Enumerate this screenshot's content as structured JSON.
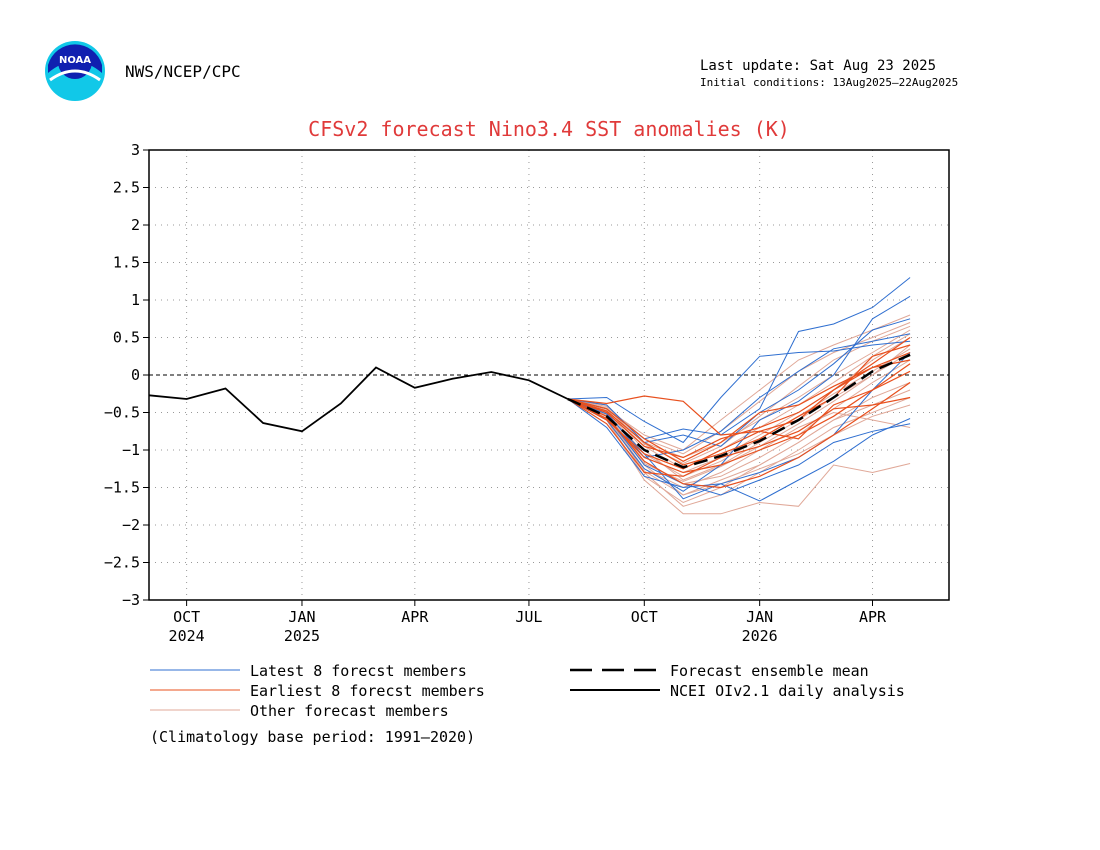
{
  "header": {
    "agency": "NWS/NCEP/CPC",
    "last_update": "Last update: Sat Aug 23 2025",
    "initial_conditions": "Initial conditions: 13Aug2025–22Aug2025",
    "logo_text": "NOAA"
  },
  "colors": {
    "latest": "#2f6fd0",
    "earliest": "#e8501e",
    "other": "#e0a898",
    "mean": "#000000",
    "analysis": "#000000",
    "title": "#e03a3a"
  },
  "chart_data": {
    "type": "line",
    "title": "CFSv2 forecast Nino3.4 SST anomalies (K)",
    "ylabel": "",
    "xlabel": "",
    "ylim": [
      -3,
      3
    ],
    "yticks": [
      {
        "v": 3,
        "label": "3"
      },
      {
        "v": 2.5,
        "label": "2.5"
      },
      {
        "v": 2,
        "label": "2"
      },
      {
        "v": 1.5,
        "label": "1.5"
      },
      {
        "v": 1,
        "label": "1"
      },
      {
        "v": 0.5,
        "label": "0.5"
      },
      {
        "v": 0,
        "label": "0"
      },
      {
        "v": -0.5,
        "label": "−0.5"
      },
      {
        "v": -1,
        "label": "−1"
      },
      {
        "v": -1.5,
        "label": "−1.5"
      },
      {
        "v": -2,
        "label": "−2"
      },
      {
        "v": -2.5,
        "label": "−2.5"
      },
      {
        "v": -3,
        "label": "−3"
      }
    ],
    "xlim": [
      "2024-09-01",
      "2026-06-01"
    ],
    "xticks": [
      {
        "date": "2024-10-01",
        "label": "OCT",
        "year": "2024"
      },
      {
        "date": "2025-01-01",
        "label": "JAN",
        "year": "2025"
      },
      {
        "date": "2025-04-01",
        "label": "APR",
        "year": ""
      },
      {
        "date": "2025-07-01",
        "label": "JUL",
        "year": ""
      },
      {
        "date": "2025-10-01",
        "label": "OCT",
        "year": ""
      },
      {
        "date": "2026-01-01",
        "label": "JAN",
        "year": "2026"
      },
      {
        "date": "2026-04-01",
        "label": "APR",
        "year": ""
      }
    ],
    "grid": true,
    "zero_line": true,
    "analysis": {
      "name": "NCEI OIv2.1 daily analysis",
      "points": [
        [
          "2024-09-01",
          -0.27
        ],
        [
          "2024-10-01",
          -0.32
        ],
        [
          "2024-11-01",
          -0.18
        ],
        [
          "2024-12-01",
          -0.64
        ],
        [
          "2025-01-01",
          -0.75
        ],
        [
          "2025-02-01",
          -0.38
        ],
        [
          "2025-03-01",
          0.1
        ],
        [
          "2025-04-01",
          -0.17
        ],
        [
          "2025-05-01",
          -0.05
        ],
        [
          "2025-06-01",
          0.04
        ],
        [
          "2025-07-01",
          -0.07
        ],
        [
          "2025-08-01",
          -0.32
        ]
      ]
    },
    "forecast_months": [
      "2025-08-01",
      "2025-09-01",
      "2025-10-01",
      "2025-11-01",
      "2025-12-01",
      "2026-01-01",
      "2026-02-01",
      "2026-03-01",
      "2026-04-01",
      "2026-05-01"
    ],
    "ensemble_mean": {
      "name": "Forecast ensemble mean",
      "values": [
        -0.32,
        -0.55,
        -1.0,
        -1.23,
        -1.08,
        -0.88,
        -0.6,
        -0.3,
        0.05,
        0.27
      ]
    },
    "latest_members": {
      "name": "Latest 8 forecst members",
      "members": [
        [
          -0.32,
          -0.3,
          -0.62,
          -0.9,
          -0.3,
          0.25,
          0.3,
          0.32,
          0.4,
          0.45
        ],
        [
          -0.32,
          -0.52,
          -1.05,
          -1.65,
          -1.45,
          -1.68,
          -1.4,
          -1.15,
          -0.8,
          -0.58
        ],
        [
          -0.32,
          -0.45,
          -0.85,
          -0.72,
          -0.8,
          -0.45,
          0.58,
          0.68,
          0.9,
          1.3
        ],
        [
          -0.32,
          -0.6,
          -1.25,
          -1.55,
          -1.2,
          -0.6,
          -0.35,
          0.0,
          0.75,
          1.05
        ],
        [
          -0.32,
          -0.7,
          -1.35,
          -1.5,
          -1.45,
          -1.3,
          -1.1,
          -0.8,
          -0.2,
          0.3
        ],
        [
          -0.32,
          -0.4,
          -0.9,
          -0.8,
          -0.95,
          -0.5,
          -0.2,
          0.15,
          0.6,
          0.75
        ],
        [
          -0.32,
          -0.55,
          -1.2,
          -1.45,
          -1.6,
          -1.4,
          -1.2,
          -0.9,
          -0.75,
          -0.65
        ],
        [
          -0.32,
          -0.5,
          -1.1,
          -1.0,
          -0.75,
          -0.3,
          0.05,
          0.35,
          0.45,
          0.55
        ]
      ]
    },
    "earliest_members": {
      "name": "Earliest 8 forecst members",
      "members": [
        [
          -0.32,
          -0.38,
          -0.28,
          -0.35,
          -0.8,
          -0.75,
          -0.85,
          -0.4,
          -0.2,
          0.05
        ],
        [
          -0.32,
          -0.6,
          -1.05,
          -1.25,
          -1.0,
          -0.75,
          -0.6,
          -0.2,
          0.1,
          0.3
        ],
        [
          -0.32,
          -0.5,
          -0.95,
          -1.1,
          -0.85,
          -0.7,
          -0.5,
          -0.2,
          0.15,
          0.5
        ],
        [
          -0.32,
          -0.55,
          -1.15,
          -1.45,
          -1.5,
          -1.35,
          -1.1,
          -0.8,
          -0.45,
          -0.1
        ],
        [
          -0.32,
          -0.45,
          -0.85,
          -1.15,
          -0.9,
          -0.5,
          -0.4,
          -0.15,
          0.1,
          0.2
        ],
        [
          -0.32,
          -0.65,
          -1.3,
          -1.35,
          -1.1,
          -0.95,
          -0.75,
          -0.45,
          -0.4,
          -0.3
        ],
        [
          -0.32,
          -0.48,
          -0.9,
          -1.2,
          -1.05,
          -0.85,
          -0.55,
          -0.3,
          0.25,
          0.4
        ],
        [
          -0.32,
          -0.58,
          -1.1,
          -1.3,
          -1.2,
          -1.0,
          -0.8,
          -0.55,
          -0.2,
          0.15
        ]
      ]
    },
    "other_members": {
      "name": "Other forecast members",
      "members": [
        [
          -0.32,
          -0.6,
          -1.4,
          -1.85,
          -1.85,
          -1.7,
          -1.75,
          -1.2,
          -1.3,
          -1.18
        ],
        [
          -0.32,
          -0.55,
          -1.3,
          -1.75,
          -1.6,
          -1.3,
          -1.0,
          -0.7,
          -0.5,
          -0.3
        ],
        [
          -0.32,
          -0.5,
          -1.2,
          -1.6,
          -1.4,
          -1.2,
          -0.9,
          -0.6,
          -0.3,
          -0.1
        ],
        [
          -0.32,
          -0.45,
          -1.0,
          -1.4,
          -1.2,
          -0.9,
          -0.6,
          -0.3,
          0.0,
          0.3
        ],
        [
          -0.32,
          -0.5,
          -1.1,
          -1.3,
          -1.1,
          -0.8,
          -0.5,
          -0.2,
          0.2,
          0.5
        ],
        [
          -0.32,
          -0.4,
          -0.9,
          -1.1,
          -0.9,
          -0.6,
          -0.3,
          0.0,
          0.3,
          0.6
        ],
        [
          -0.32,
          -0.45,
          -0.8,
          -1.0,
          -0.6,
          -0.2,
          0.2,
          0.4,
          0.6,
          0.8
        ],
        [
          -0.32,
          -0.55,
          -1.25,
          -1.5,
          -1.3,
          -1.0,
          -0.7,
          -0.5,
          -0.6,
          -0.7
        ],
        [
          -0.32,
          -0.6,
          -1.35,
          -1.7,
          -1.5,
          -1.2,
          -0.9,
          -0.6,
          -0.4,
          -0.2
        ],
        [
          -0.32,
          -0.48,
          -1.05,
          -1.35,
          -1.15,
          -0.85,
          -0.55,
          -0.25,
          0.05,
          0.35
        ],
        [
          -0.32,
          -0.42,
          -0.85,
          -1.05,
          -0.75,
          -0.35,
          0.05,
          0.3,
          0.5,
          0.7
        ],
        [
          -0.32,
          -0.52,
          -1.15,
          -1.45,
          -1.35,
          -1.1,
          -0.8,
          -0.45,
          -0.1,
          0.2
        ],
        [
          -0.32,
          -0.58,
          -1.28,
          -1.6,
          -1.45,
          -1.25,
          -1.05,
          -0.8,
          -0.55,
          -0.4
        ],
        [
          -0.32,
          -0.47,
          -0.95,
          -1.25,
          -1.0,
          -0.7,
          -0.4,
          -0.1,
          0.25,
          0.55
        ],
        [
          -0.32,
          -0.53,
          -1.18,
          -1.42,
          -1.22,
          -0.95,
          -0.65,
          -0.35,
          0.0,
          0.4
        ],
        [
          -0.32,
          -0.44,
          -0.92,
          -1.18,
          -0.95,
          -0.55,
          -0.15,
          0.2,
          0.45,
          0.65
        ]
      ]
    },
    "note": "(Climatology base period: 1991–2020)"
  }
}
